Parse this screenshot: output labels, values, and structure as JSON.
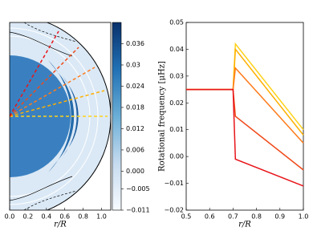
{
  "chart_data": [
    {
      "type": "contour",
      "xlabel": "r/R",
      "xlim": [
        0,
        1.1
      ],
      "xticks": [
        {
          "value": 0,
          "label": "0.0"
        },
        0.2,
        0.4,
        0.6,
        0.8,
        {
          "value": 1,
          "label": "1.0"
        }
      ],
      "clim": [
        -0.011,
        0.042
      ],
      "cticks": [
        0.036,
        0.03,
        0.024,
        0.018,
        0.012,
        0.006,
        {
          "value": 0,
          "label": "0.000"
        },
        {
          "value": -0.005,
          "label": "−0.005"
        },
        {
          "value": -0.011,
          "label": "−0.011"
        }
      ]
    },
    {
      "type": "line",
      "xlabel": "r/R",
      "ylabel": "Rotational frequency [μHz]",
      "x": [
        0.5,
        0.7,
        0.71,
        1.0
      ],
      "xlim": [
        0.5,
        1.0
      ],
      "xticks": [
        0.5,
        0.6,
        0.7,
        0.8,
        0.9,
        {
          "value": 1,
          "label": "1.0"
        }
      ],
      "ylim": [
        -0.02,
        0.05
      ],
      "yticks": [
        {
          "value": -0.02,
          "label": "−0.02"
        },
        {
          "value": -0.01,
          "label": "−0.01"
        },
        {
          "value": 0,
          "label": "0.00"
        },
        0.01,
        0.02,
        0.03,
        0.04,
        0.05
      ],
      "series": [
        {
          "color": "#ffd21a",
          "values": [
            0.025,
            0.025,
            0.042,
            0.01
          ]
        },
        {
          "color": "#ffb000",
          "values": [
            0.025,
            0.025,
            0.04,
            0.008
          ]
        },
        {
          "color": "#ff7a1a",
          "values": [
            0.025,
            0.025,
            0.033,
            0.005
          ]
        },
        {
          "color": "#f04a1a",
          "values": [
            0.025,
            0.025,
            0.015,
            -0.005
          ]
        },
        {
          "color": "#e8141a",
          "values": [
            0.025,
            0.025,
            -0.001,
            -0.011
          ]
        }
      ]
    }
  ]
}
